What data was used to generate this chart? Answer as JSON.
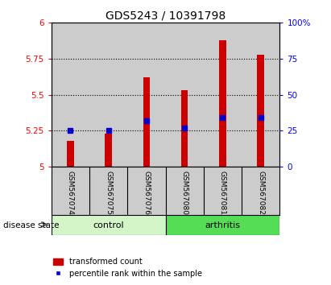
{
  "title": "GDS5243 / 10391798",
  "samples": [
    "GSM567074",
    "GSM567075",
    "GSM567076",
    "GSM567080",
    "GSM567081",
    "GSM567082"
  ],
  "groups": [
    "control",
    "control",
    "control",
    "arthritis",
    "arthritis",
    "arthritis"
  ],
  "red_values": [
    5.18,
    5.23,
    5.62,
    5.53,
    5.88,
    5.78
  ],
  "blue_values": [
    5.25,
    5.25,
    5.32,
    5.27,
    5.34,
    5.34
  ],
  "y_min": 5.0,
  "y_max": 6.0,
  "y_ticks": [
    5.0,
    5.25,
    5.5,
    5.75,
    6.0
  ],
  "y_tick_labels": [
    "5",
    "5.25",
    "5.5",
    "5.75",
    "6"
  ],
  "right_y_ticks": [
    0,
    25,
    50,
    75,
    100
  ],
  "right_y_tick_labels": [
    "0",
    "25",
    "50",
    "75",
    "100%"
  ],
  "control_color": "#d4f5c8",
  "arthritis_color": "#55dd55",
  "bar_color": "#cc0000",
  "dot_color": "#0000cc",
  "bg_color": "#cccccc",
  "plot_bg": "#ffffff",
  "label_fontsize": 7.5,
  "title_fontsize": 10,
  "bar_width": 0.18
}
